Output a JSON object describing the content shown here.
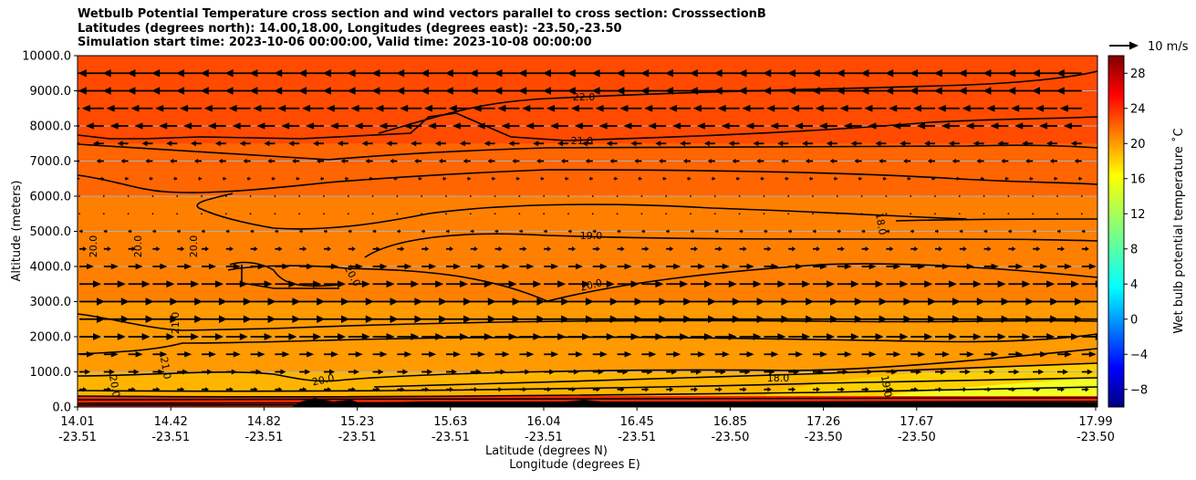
{
  "title_lines": [
    "Wetbulb Potential Temperature cross section and wind vectors parallel to cross section: CrosssectionB",
    "Latitudes (degrees north): 14.00,18.00, Longitudes (degrees east): -23.50,-23.50",
    "Simulation start time: 2023-10-06 00:00:00, Valid time: 2023-10-08 00:00:00"
  ],
  "chart_data": {
    "type": "contour",
    "title": "Wetbulb Potential Temperature cross section and wind vectors parallel to cross section: CrosssectionB",
    "xlabel": "Latitude (degrees N)",
    "xlabel2": "Longitude (degrees E)",
    "ylabel": "Altitude (meters)",
    "ylim": [
      0,
      10000
    ],
    "y_ticks": [
      0,
      1000,
      2000,
      3000,
      4000,
      5000,
      6000,
      7000,
      8000,
      9000,
      10000
    ],
    "y_tick_labels": [
      "0.0",
      "1000.0",
      "2000.0",
      "3000.0",
      "4000.0",
      "5000.0",
      "6000.0",
      "7000.0",
      "8000.0",
      "9000.0",
      "10000.0"
    ],
    "x_ticks": [
      {
        "lat": "14.01",
        "lon": "-23.51"
      },
      {
        "lat": "14.42",
        "lon": "-23.51"
      },
      {
        "lat": "14.82",
        "lon": "-23.51"
      },
      {
        "lat": "15.23",
        "lon": "-23.51"
      },
      {
        "lat": "15.63",
        "lon": "-23.51"
      },
      {
        "lat": "16.04",
        "lon": "-23.51"
      },
      {
        "lat": "16.45",
        "lon": "-23.51"
      },
      {
        "lat": "16.85",
        "lon": "-23.50"
      },
      {
        "lat": "17.26",
        "lon": "-23.50"
      },
      {
        "lat": "17.67",
        "lon": "-23.50"
      },
      {
        "lat": "17.99",
        "lon": "-23.50"
      }
    ],
    "colorbar": {
      "label": "Wet bulb potential temperature ˚C",
      "min": -10,
      "max": 30,
      "ticks": [
        -8,
        -4,
        0,
        4,
        8,
        12,
        16,
        20,
        24,
        28
      ],
      "tick_labels": [
        "−8",
        "−4",
        "0",
        "4",
        "8",
        "12",
        "16",
        "20",
        "24",
        "28"
      ]
    },
    "quiver_key": {
      "label": "10 m/s",
      "value": 10
    },
    "contour_labels": [
      "22.0",
      "21.0",
      "19.0",
      "20.0",
      "18.0",
      "20.0",
      "20.0",
      "20.0",
      "20.0",
      "21.0",
      "21.0",
      "20.0",
      "20.0",
      "18.0",
      "19.0"
    ],
    "fill_bands": [
      {
        "z_top": 10000,
        "temp": 23.5,
        "color": "#ff4a00"
      },
      {
        "z_top": 7500,
        "temp": 22.5,
        "color": "#ff6500"
      },
      {
        "z_top": 6000,
        "temp": 21.0,
        "color": "#ff8000"
      },
      {
        "z_top": 3000,
        "temp": 20.0,
        "color": "#ff9a00"
      },
      {
        "z_top": 1000,
        "temp": 19.0,
        "color": "#ffb500"
      }
    ],
    "wind_rows": [
      {
        "z": 9500,
        "speed": -7
      },
      {
        "z": 9000,
        "speed": -7
      },
      {
        "z": 8500,
        "speed": -6
      },
      {
        "z": 8000,
        "speed": -5
      },
      {
        "z": 7500,
        "speed": -3
      },
      {
        "z": 7000,
        "speed": -2
      },
      {
        "z": 6500,
        "speed": -1
      },
      {
        "z": 6000,
        "speed": 0.5
      },
      {
        "z": 5500,
        "speed": 0.5
      },
      {
        "z": 5000,
        "speed": 1
      },
      {
        "z": 4500,
        "speed": 2
      },
      {
        "z": 4000,
        "speed": 4
      },
      {
        "z": 3500,
        "speed": 6
      },
      {
        "z": 3000,
        "speed": 7
      },
      {
        "z": 2500,
        "speed": 7
      },
      {
        "z": 2000,
        "speed": 6
      },
      {
        "z": 1500,
        "speed": 4
      },
      {
        "z": 1000,
        "speed": 3
      },
      {
        "z": 500,
        "speed": 2
      }
    ]
  }
}
